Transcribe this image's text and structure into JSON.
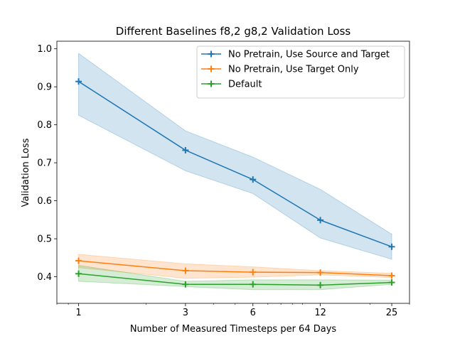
{
  "chart_data": {
    "type": "line",
    "title": "Different Baselines f8,2 g8,2 Validation Loss",
    "xlabel": "Number of Measured Timesteps per 64 Days",
    "ylabel": "Validation Loss",
    "x_scale": "log",
    "x": [
      1,
      3,
      6,
      12,
      25
    ],
    "x_tick_labels": [
      "1",
      "3",
      "6",
      "12",
      "25"
    ],
    "xlim": [
      0.8,
      30
    ],
    "ylim": [
      0.33,
      1.02
    ],
    "y_ticks": [
      0.4,
      0.5,
      0.6,
      0.7,
      0.8,
      0.9,
      1.0
    ],
    "y_tick_labels": [
      "0.4",
      "0.5",
      "0.6",
      "0.7",
      "0.8",
      "0.9",
      "1.0"
    ],
    "grid": false,
    "legend_position": "top-right",
    "series": [
      {
        "name": "No Pretrain, Use Source and Target",
        "color": "#1f77b4",
        "values": [
          0.914,
          0.733,
          0.656,
          0.549,
          0.479
        ],
        "lower": [
          0.825,
          0.679,
          0.619,
          0.502,
          0.446
        ],
        "upper": [
          0.988,
          0.784,
          0.715,
          0.63,
          0.512
        ]
      },
      {
        "name": "No Pretrain, Use Target Only",
        "color": "#ff7f0e",
        "values": [
          0.442,
          0.416,
          0.412,
          0.411,
          0.403
        ],
        "lower": [
          0.424,
          0.396,
          0.399,
          0.405,
          0.398
        ],
        "upper": [
          0.459,
          0.434,
          0.426,
          0.416,
          0.409
        ]
      },
      {
        "name": "Default",
        "color": "#2ca02c",
        "values": [
          0.408,
          0.38,
          0.38,
          0.378,
          0.385
        ],
        "lower": [
          0.388,
          0.374,
          0.366,
          0.366,
          0.38
        ],
        "upper": [
          0.43,
          0.388,
          0.392,
          0.392,
          0.391
        ]
      }
    ]
  }
}
